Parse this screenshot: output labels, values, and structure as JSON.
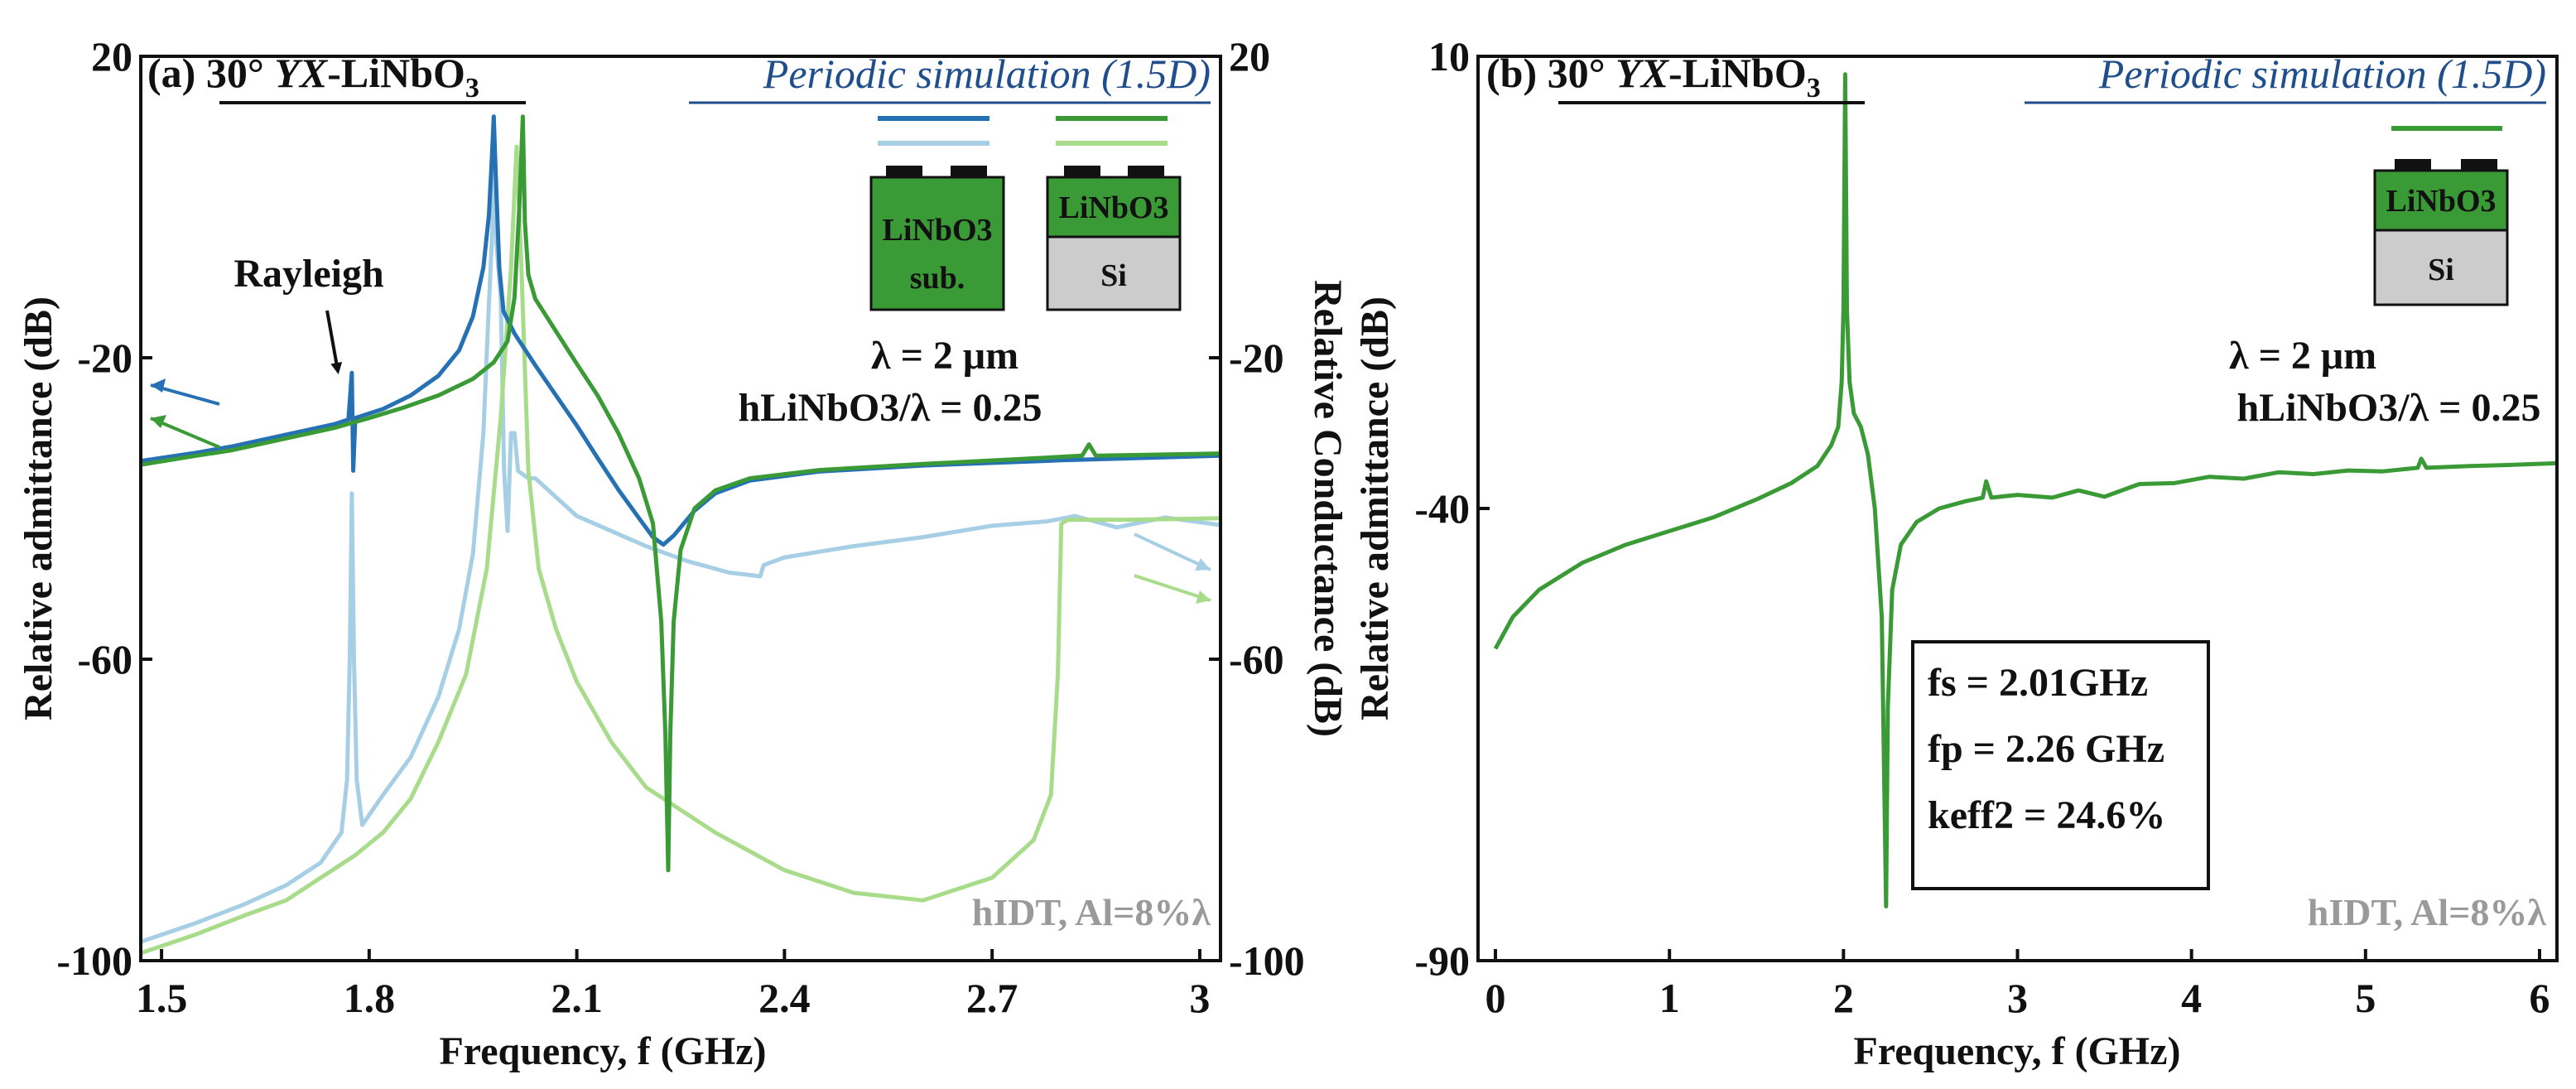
{
  "chart_data": [
    {
      "type": "line",
      "panel": "(a)",
      "title_label": "(a)",
      "title_angle": "30°",
      "title_cut": "YX",
      "title_material": "-LiNbO",
      "title_sub": "3",
      "simulation_label": "Periodic simulation (1.5D)",
      "xlabel": "Frequency, f (GHz)",
      "ylabel": "Relative admittance (dB)",
      "y2label": "Relative Conductance (dB)",
      "xlim": [
        1.47,
        3.03
      ],
      "ylim": [
        -100,
        20
      ],
      "x_ticks": [
        "1.5",
        "1.8",
        "2.1",
        "2.4",
        "2.7",
        "3"
      ],
      "y_ticks": [
        "20",
        "-20",
        "-60",
        "-100"
      ],
      "y2_ticks": [
        "20",
        "-20",
        "-60",
        "-100"
      ],
      "annotation_rayleigh": "Rayleigh",
      "annotation_lambda": "λ = 2 μm",
      "annotation_h_ratio": "hLiNbO3/λ = 0.25",
      "annotation_hidt": "hIDT, Al=8%λ",
      "inset_labels": {
        "substrate_top": "LiNbO3",
        "substrate_bottom": "sub.",
        "film": "LiNbO3",
        "si": "Si"
      },
      "series": [
        {
          "name": "admittance, LiNbO3 sub.",
          "axis": "left",
          "color": "#2671b3",
          "points": [
            [
              1.47,
              -33.7
            ],
            [
              1.55,
              -32.6
            ],
            [
              1.6,
              -31.8
            ],
            [
              1.65,
              -30.8
            ],
            [
              1.7,
              -29.8
            ],
            [
              1.75,
              -28.8
            ],
            [
              1.77,
              -28.2
            ],
            [
              1.775,
              -22
            ],
            [
              1.777,
              -35
            ],
            [
              1.78,
              -28.0
            ],
            [
              1.82,
              -26.8
            ],
            [
              1.86,
              -25.0
            ],
            [
              1.9,
              -22.4
            ],
            [
              1.93,
              -19.0
            ],
            [
              1.95,
              -14.5
            ],
            [
              1.965,
              -8
            ],
            [
              1.973,
              -1
            ],
            [
              1.977,
              6
            ],
            [
              1.98,
              12
            ],
            [
              1.983,
              4
            ],
            [
              1.988,
              -8
            ],
            [
              1.994,
              -13.8
            ],
            [
              2.01,
              -16.8
            ],
            [
              2.04,
              -21.0
            ],
            [
              2.07,
              -25.0
            ],
            [
              2.1,
              -29.0
            ],
            [
              2.13,
              -33.3
            ],
            [
              2.16,
              -37.5
            ],
            [
              2.19,
              -41.3
            ],
            [
              2.21,
              -43.8
            ],
            [
              2.225,
              -44.8
            ],
            [
              2.24,
              -43.6
            ],
            [
              2.27,
              -40.3
            ],
            [
              2.3,
              -38.0
            ],
            [
              2.35,
              -36.3
            ],
            [
              2.45,
              -35.1
            ],
            [
              2.6,
              -34.3
            ],
            [
              2.8,
              -33.6
            ],
            [
              3.03,
              -33.0
            ]
          ]
        },
        {
          "name": "admittance, LiNbO3/Si",
          "axis": "left",
          "color": "#3a9a35",
          "points": [
            [
              1.47,
              -34.2
            ],
            [
              1.55,
              -33.0
            ],
            [
              1.6,
              -32.3
            ],
            [
              1.65,
              -31.3
            ],
            [
              1.7,
              -30.3
            ],
            [
              1.75,
              -29.3
            ],
            [
              1.8,
              -28.0
            ],
            [
              1.85,
              -26.6
            ],
            [
              1.9,
              -25.0
            ],
            [
              1.95,
              -22.8
            ],
            [
              1.98,
              -20.6
            ],
            [
              2.0,
              -17.8
            ],
            [
              2.01,
              -12
            ],
            [
              2.017,
              0
            ],
            [
              2.022,
              12
            ],
            [
              2.025,
              -2
            ],
            [
              2.03,
              -9
            ],
            [
              2.04,
              -12.2
            ],
            [
              2.07,
              -16.5
            ],
            [
              2.1,
              -20.8
            ],
            [
              2.13,
              -25.0
            ],
            [
              2.16,
              -30.0
            ],
            [
              2.19,
              -36.0
            ],
            [
              2.21,
              -42.0
            ],
            [
              2.222,
              -55
            ],
            [
              2.228,
              -70
            ],
            [
              2.232,
              -88
            ],
            [
              2.235,
              -70
            ],
            [
              2.24,
              -55
            ],
            [
              2.25,
              -45.5
            ],
            [
              2.27,
              -40.0
            ],
            [
              2.3,
              -37.6
            ],
            [
              2.35,
              -36.0
            ],
            [
              2.45,
              -34.9
            ],
            [
              2.6,
              -34.1
            ],
            [
              2.75,
              -33.4
            ],
            [
              2.83,
              -33.0
            ],
            [
              2.84,
              -31.5
            ],
            [
              2.85,
              -33.0
            ],
            [
              3.03,
              -32.7
            ]
          ]
        },
        {
          "name": "conductance, LiNbO3 sub.",
          "axis": "right",
          "color": "#a6cfe6",
          "points": [
            [
              1.47,
              -97.5
            ],
            [
              1.55,
              -95.0
            ],
            [
              1.62,
              -92.5
            ],
            [
              1.68,
              -90.0
            ],
            [
              1.73,
              -87.0
            ],
            [
              1.76,
              -83.0
            ],
            [
              1.768,
              -76
            ],
            [
              1.772,
              -60
            ],
            [
              1.775,
              -38
            ],
            [
              1.778,
              -60
            ],
            [
              1.782,
              -76
            ],
            [
              1.79,
              -82.0
            ],
            [
              1.82,
              -78.0
            ],
            [
              1.86,
              -73.0
            ],
            [
              1.9,
              -65.0
            ],
            [
              1.93,
              -56.0
            ],
            [
              1.95,
              -46.0
            ],
            [
              1.965,
              -30.0
            ],
            [
              1.972,
              -15.0
            ],
            [
              1.978,
              -3.0
            ],
            [
              1.98,
              12
            ],
            [
              1.984,
              -5
            ],
            [
              1.99,
              -12.0
            ],
            [
              1.995,
              -35.0
            ],
            [
              2.0,
              -43.0
            ],
            [
              2.005,
              -30.0
            ],
            [
              2.01,
              -30.0
            ],
            [
              2.015,
              -35.0
            ],
            [
              2.03,
              -36.0
            ],
            [
              2.04,
              -36.0
            ],
            [
              2.07,
              -38.5
            ],
            [
              2.1,
              -41.0
            ],
            [
              2.15,
              -43.0
            ],
            [
              2.2,
              -45.0
            ],
            [
              2.26,
              -47.0
            ],
            [
              2.32,
              -48.5
            ],
            [
              2.365,
              -49.0
            ],
            [
              2.37,
              -47.5
            ],
            [
              2.4,
              -46.5
            ],
            [
              2.5,
              -45.0
            ],
            [
              2.6,
              -43.8
            ],
            [
              2.7,
              -42.3
            ],
            [
              2.78,
              -41.7
            ],
            [
              2.82,
              -41.0
            ],
            [
              2.88,
              -42.5
            ],
            [
              2.95,
              -41.2
            ],
            [
              3.03,
              -42.2
            ]
          ]
        },
        {
          "name": "conductance, LiNbO3/Si",
          "axis": "right",
          "color": "#a8dc8b",
          "points": [
            [
              1.47,
              -99.0
            ],
            [
              1.55,
              -96.5
            ],
            [
              1.62,
              -94.0
            ],
            [
              1.68,
              -92.0
            ],
            [
              1.73,
              -89.0
            ],
            [
              1.78,
              -86.0
            ],
            [
              1.82,
              -83.0
            ],
            [
              1.86,
              -78.5
            ],
            [
              1.9,
              -71.0
            ],
            [
              1.94,
              -62.0
            ],
            [
              1.97,
              -48.0
            ],
            [
              1.99,
              -28.0
            ],
            [
              2.005,
              -8
            ],
            [
              2.013,
              8
            ],
            [
              2.02,
              -8
            ],
            [
              2.03,
              -35.0
            ],
            [
              2.045,
              -48.0
            ],
            [
              2.07,
              -56.0
            ],
            [
              2.1,
              -63.0
            ],
            [
              2.15,
              -71.0
            ],
            [
              2.2,
              -77.0
            ],
            [
              2.3,
              -83.0
            ],
            [
              2.4,
              -88.0
            ],
            [
              2.5,
              -91.0
            ],
            [
              2.6,
              -92.0
            ],
            [
              2.7,
              -89.0
            ],
            [
              2.76,
              -84.0
            ],
            [
              2.785,
              -78.0
            ],
            [
              2.795,
              -62.0
            ],
            [
              2.8,
              -42.0
            ],
            [
              2.81,
              -41.5
            ],
            [
              2.9,
              -41.5
            ],
            [
              3.03,
              -41.3
            ]
          ]
        }
      ]
    },
    {
      "type": "line",
      "panel": "(b)",
      "title_label": "(b)",
      "title_angle": "30°",
      "title_cut": "YX",
      "title_material": "-LiNbO",
      "title_sub": "3",
      "simulation_label": "Periodic simulation (1.5D)",
      "xlabel": "Frequency, f (GHz)",
      "ylabel": "Relative admittance (dB)",
      "xlim": [
        -0.1,
        6.1
      ],
      "ylim": [
        -90,
        10
      ],
      "x_ticks": [
        "0",
        "1",
        "2",
        "3",
        "4",
        "5",
        "6"
      ],
      "y_ticks": [
        "10",
        "-40",
        "-90"
      ],
      "annotation_lambda": "λ = 2 μm",
      "annotation_h_ratio": "hLiNbO3/λ = 0.25",
      "annotation_hidt": "hIDT, Al=8%λ",
      "box": {
        "fs": "fs = 2.01GHz",
        "fp": "fp = 2.26 GHz",
        "keff": "keff2 = 24.6%"
      },
      "inset_labels": {
        "film": "LiNbO3",
        "si": "Si"
      },
      "series": [
        {
          "name": "admittance, LiNbO3/Si",
          "color": "#3a9a35",
          "points": [
            [
              0.0,
              -55.5
            ],
            [
              0.1,
              -52.0
            ],
            [
              0.25,
              -49.0
            ],
            [
              0.5,
              -46.0
            ],
            [
              0.75,
              -44.0
            ],
            [
              1.0,
              -42.5
            ],
            [
              1.25,
              -41.0
            ],
            [
              1.5,
              -39.0
            ],
            [
              1.7,
              -37.2
            ],
            [
              1.85,
              -35.3
            ],
            [
              1.93,
              -33.0
            ],
            [
              1.97,
              -31.0
            ],
            [
              1.99,
              -26.0
            ],
            [
              2.0,
              -18.0
            ],
            [
              2.005,
              -5.0
            ],
            [
              2.01,
              8.0
            ],
            [
              2.015,
              -5.0
            ],
            [
              2.02,
              -18.0
            ],
            [
              2.035,
              -26.0
            ],
            [
              2.06,
              -29.5
            ],
            [
              2.1,
              -31.0
            ],
            [
              2.14,
              -34.0
            ],
            [
              2.18,
              -40.0
            ],
            [
              2.22,
              -52.0
            ],
            [
              2.245,
              -84.0
            ],
            [
              2.255,
              -62.0
            ],
            [
              2.28,
              -49.0
            ],
            [
              2.33,
              -44.0
            ],
            [
              2.42,
              -41.5
            ],
            [
              2.55,
              -40.0
            ],
            [
              2.7,
              -39.2
            ],
            [
              2.8,
              -38.8
            ],
            [
              2.82,
              -37.0
            ],
            [
              2.85,
              -38.8
            ],
            [
              3.0,
              -38.5
            ],
            [
              3.2,
              -38.8
            ],
            [
              3.35,
              -38.0
            ],
            [
              3.5,
              -38.7
            ],
            [
              3.7,
              -37.3
            ],
            [
              3.9,
              -37.2
            ],
            [
              4.1,
              -36.5
            ],
            [
              4.3,
              -36.7
            ],
            [
              4.5,
              -36.0
            ],
            [
              4.7,
              -36.2
            ],
            [
              4.9,
              -35.8
            ],
            [
              5.1,
              -35.9
            ],
            [
              5.3,
              -35.5
            ],
            [
              5.32,
              -34.5
            ],
            [
              5.35,
              -35.5
            ],
            [
              5.6,
              -35.3
            ],
            [
              5.8,
              -35.2
            ],
            [
              6.1,
              -35.0
            ]
          ]
        }
      ]
    }
  ]
}
